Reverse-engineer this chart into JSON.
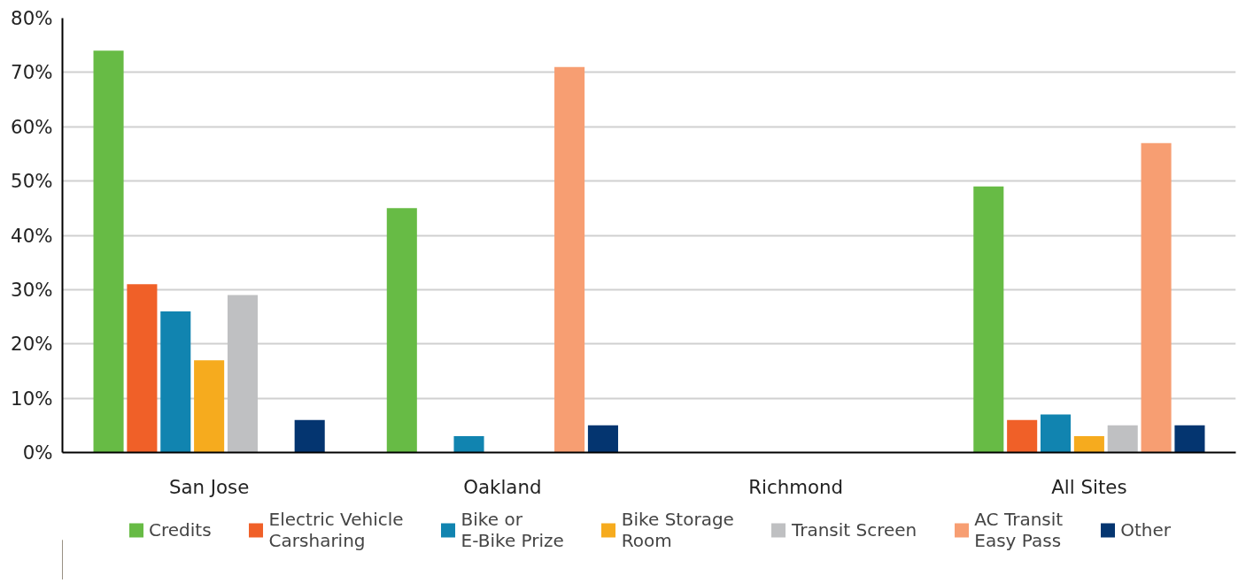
{
  "chart_data": {
    "type": "bar",
    "categories": [
      "San Jose",
      "Oakland",
      "Richmond",
      "All Sites"
    ],
    "series": [
      {
        "name": "Credits",
        "color": "#67bb45",
        "values": [
          74,
          45,
          0,
          49
        ]
      },
      {
        "name": "Electric Vehicle\nCarsharing",
        "color": "#f06028",
        "values": [
          31,
          0,
          0,
          6
        ]
      },
      {
        "name": "Bike or\nE-Bike Prize",
        "color": "#1184b0",
        "values": [
          26,
          3,
          0,
          7
        ]
      },
      {
        "name": "Bike Storage\nRoom",
        "color": "#f6ab1e",
        "values": [
          17,
          0,
          0,
          3
        ]
      },
      {
        "name": "Transit Screen",
        "color": "#bfc0c2",
        "values": [
          29,
          0,
          0,
          5
        ]
      },
      {
        "name": "AC Transit\nEasy Pass",
        "color": "#f79e72",
        "values": [
          0,
          71,
          0,
          57
        ]
      },
      {
        "name": "Other",
        "color": "#043570",
        "values": [
          6,
          5,
          0,
          5
        ]
      }
    ],
    "ylim": [
      0,
      80
    ],
    "yticks": [
      {
        "value": 0,
        "label": "0%"
      },
      {
        "value": 10,
        "label": "10%"
      },
      {
        "value": 20,
        "label": "20%"
      },
      {
        "value": 30,
        "label": "30%"
      },
      {
        "value": 40,
        "label": "40%"
      },
      {
        "value": 50,
        "label": "50%"
      },
      {
        "value": 60,
        "label": "60%"
      },
      {
        "value": 70,
        "label": "70%"
      },
      {
        "value": 80,
        "label": "80%"
      }
    ],
    "grid": "y",
    "legend": "bottom"
  }
}
